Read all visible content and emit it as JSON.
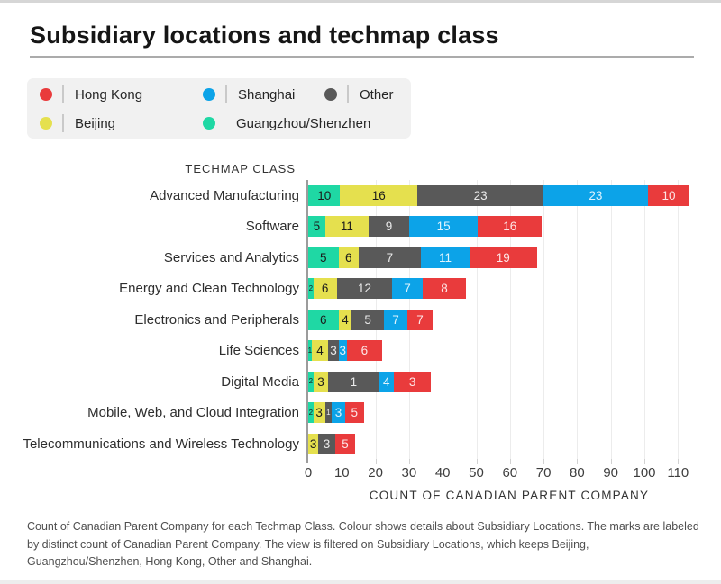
{
  "page": {
    "title": "Subsidiary locations and techmap class"
  },
  "legend": {
    "items": [
      {
        "label": "Hong Kong",
        "color": "#e93b3c"
      },
      {
        "label": "Shanghai",
        "color": "#0ca3e8"
      },
      {
        "label": "Other",
        "color": "#595959"
      },
      {
        "label": "Beijing",
        "color": "#e5e04e"
      },
      {
        "label": "Guangzhou/Shenzhen",
        "color": "#1fd8a4"
      }
    ]
  },
  "chart_data": {
    "type": "bar",
    "orientation": "horizontal",
    "stacked": true,
    "grid": true,
    "legend_position": "top",
    "row_axis_title": "TECHMAP CLASS",
    "xlabel": "COUNT OF CANADIAN PARENT COMPANY",
    "x_ticks": [
      0,
      10,
      20,
      30,
      40,
      50,
      60,
      70,
      80,
      90,
      100,
      110
    ],
    "xlim": [
      0,
      119
    ],
    "series_order": [
      "Guangzhou/Shenzhen",
      "Beijing",
      "Other",
      "Shanghai",
      "Hong Kong"
    ],
    "colors": {
      "Hong Kong": "#e93b3c",
      "Shanghai": "#0ca3e8",
      "Other": "#595959",
      "Beijing": "#e5e04e",
      "Guangzhou/Shenzhen": "#1fd8a4"
    },
    "dark_text_series": [
      "Beijing",
      "Guangzhou/Shenzhen"
    ],
    "categories": [
      "Advanced Manufacturing",
      "Software",
      "Services and Analytics",
      "Energy and Clean Technology",
      "Electronics and Peripherals",
      "Life Sciences",
      "Digital Media",
      "Mobile, Web, and Cloud Integration",
      "Telecommunications and Wireless Technology"
    ],
    "rows": [
      {
        "category": "Advanced Manufacturing",
        "segments": [
          {
            "location": "Guangzhou/Shenzhen",
            "label": 10,
            "extent": 9.5
          },
          {
            "location": "Beijing",
            "label": 16,
            "extent": 23
          },
          {
            "location": "Other",
            "label": 23,
            "extent": 37.5
          },
          {
            "location": "Shanghai",
            "label": 23,
            "extent": 31
          },
          {
            "location": "Hong Kong",
            "label": 10,
            "extent": 12.5
          }
        ]
      },
      {
        "category": "Software",
        "segments": [
          {
            "location": "Guangzhou/Shenzhen",
            "label": 5,
            "extent": 5
          },
          {
            "location": "Beijing",
            "label": 11,
            "extent": 13
          },
          {
            "location": "Other",
            "label": 9,
            "extent": 12
          },
          {
            "location": "Shanghai",
            "label": 15,
            "extent": 20.5
          },
          {
            "location": "Hong Kong",
            "label": 16,
            "extent": 19
          }
        ]
      },
      {
        "category": "Services and Analytics",
        "segments": [
          {
            "location": "Guangzhou/Shenzhen",
            "label": 5,
            "extent": 9
          },
          {
            "location": "Beijing",
            "label": 6,
            "extent": 6
          },
          {
            "location": "Other",
            "label": 7,
            "extent": 18.5
          },
          {
            "location": "Shanghai",
            "label": 11,
            "extent": 14.5
          },
          {
            "location": "Hong Kong",
            "label": 19,
            "extent": 20
          }
        ]
      },
      {
        "category": "Energy and Clean Technology",
        "segments": [
          {
            "location": "Guangzhou/Shenzhen",
            "label": 2,
            "extent": 1.5
          },
          {
            "location": "Beijing",
            "label": 6,
            "extent": 7
          },
          {
            "location": "Other",
            "label": 12,
            "extent": 16.5
          },
          {
            "location": "Shanghai",
            "label": 7,
            "extent": 9
          },
          {
            "location": "Hong Kong",
            "label": 8,
            "extent": 13
          }
        ]
      },
      {
        "category": "Electronics and Peripherals",
        "segments": [
          {
            "location": "Guangzhou/Shenzhen",
            "label": 6,
            "extent": 9
          },
          {
            "location": "Beijing",
            "label": 4,
            "extent": 4
          },
          {
            "location": "Other",
            "label": 5,
            "extent": 9.5
          },
          {
            "location": "Shanghai",
            "label": 7,
            "extent": 7
          },
          {
            "location": "Hong Kong",
            "label": 7,
            "extent": 7.5
          }
        ]
      },
      {
        "category": "Life Sciences",
        "segments": [
          {
            "location": "Guangzhou/Shenzhen",
            "label": 1,
            "extent": 1
          },
          {
            "location": "Beijing",
            "label": 4,
            "extent": 5
          },
          {
            "location": "Other",
            "label": 3,
            "extent": 3
          },
          {
            "location": "Shanghai",
            "label": 3,
            "extent": 2.5
          },
          {
            "location": "Hong Kong",
            "label": 6,
            "extent": 10.5
          }
        ]
      },
      {
        "category": "Digital Media",
        "segments": [
          {
            "location": "Guangzhou/Shenzhen",
            "label": 2,
            "extent": 1.5
          },
          {
            "location": "Beijing",
            "label": 3,
            "extent": 4.5
          },
          {
            "location": "Other",
            "label": 1,
            "extent": 15
          },
          {
            "location": "Shanghai",
            "label": 4,
            "extent": 4.5
          },
          {
            "location": "Hong Kong",
            "label": 3,
            "extent": 11
          }
        ]
      },
      {
        "category": "Mobile, Web, and Cloud Integration",
        "segments": [
          {
            "location": "Guangzhou/Shenzhen",
            "label": 2,
            "extent": 1.5
          },
          {
            "location": "Beijing",
            "label": 3,
            "extent": 3.5
          },
          {
            "location": "Other",
            "label": 1,
            "extent": 2
          },
          {
            "location": "Shanghai",
            "label": 3,
            "extent": 4
          },
          {
            "location": "Hong Kong",
            "label": 5,
            "extent": 5.5
          }
        ]
      },
      {
        "category": "Telecommunications and Wireless Technology",
        "segments": [
          {
            "location": "Beijing",
            "label": 3,
            "extent": 3
          },
          {
            "location": "Other",
            "label": 3,
            "extent": 5
          },
          {
            "location": "Hong Kong",
            "label": 5,
            "extent": 6
          }
        ]
      }
    ]
  },
  "caption": "Count of Canadian Parent Company for each Techmap Class. Colour shows details about Subsidiary Locations. The marks are labeled by distinct count of Canadian Parent Company. The view is filtered on Subsidiary Locations, which keeps Beijing, Guangzhou/Shenzhen, Hong Kong, Other and Shanghai."
}
